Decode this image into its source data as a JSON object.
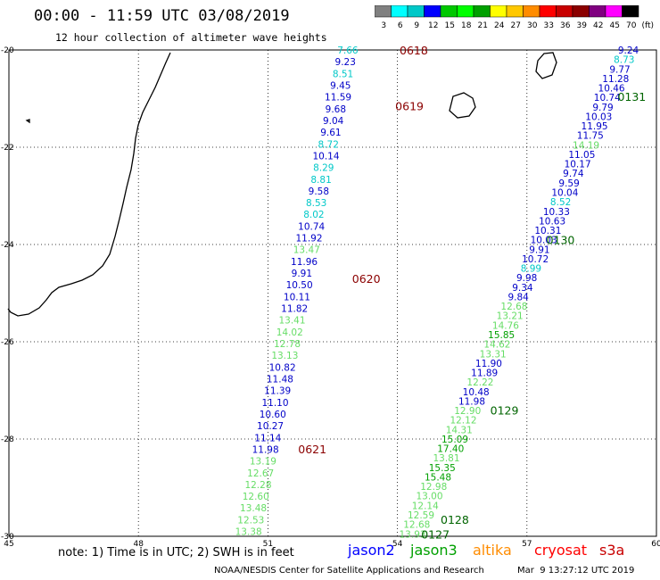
{
  "header": {
    "title": "00:00 - 11:59 UTC 03/08/2019",
    "subtitle": "12 hour collection of altimeter wave heights"
  },
  "colorbar": {
    "labels": [
      "3",
      "6",
      "9",
      "12",
      "15",
      "18",
      "21",
      "24",
      "27",
      "30",
      "33",
      "36",
      "39",
      "42",
      "45",
      "70",
      "(ft)"
    ],
    "colors": [
      "#808080",
      "#00ffff",
      "#00c8c8",
      "#0000ff",
      "#00c800",
      "#00ff00",
      "#00a000",
      "#ffff00",
      "#ffc800",
      "#ff8c00",
      "#ff0000",
      "#c80000",
      "#8b0000",
      "#800080",
      "#ff00ff",
      "#000000"
    ]
  },
  "axes": {
    "lon_ticks": [
      "45",
      "48",
      "51",
      "54",
      "57",
      "60"
    ],
    "lat_ticks": [
      "-20",
      "-22",
      "-24",
      "-26",
      "-28",
      "-30"
    ]
  },
  "passes": [
    {
      "text": "0618",
      "color": "#8b0000",
      "lon": 54.05,
      "lat": -20.0
    },
    {
      "text": "0619",
      "color": "#8b0000",
      "lon": 53.95,
      "lat": -21.15
    },
    {
      "text": "0620",
      "color": "#8b0000",
      "lon": 52.95,
      "lat": -24.7
    },
    {
      "text": "0621",
      "color": "#8b0000",
      "lon": 51.7,
      "lat": -28.2
    },
    {
      "text": "0131",
      "color": "#006400",
      "lon": 59.1,
      "lat": -20.95
    },
    {
      "text": "0130",
      "color": "#006400",
      "lon": 57.45,
      "lat": -23.9
    },
    {
      "text": "0129",
      "color": "#006400",
      "lon": 56.15,
      "lat": -27.4
    },
    {
      "text": "0128",
      "color": "#006400",
      "lon": 55.0,
      "lat": -29.65
    },
    {
      "text": "0127",
      "color": "#006400",
      "lon": 54.55,
      "lat": -29.95
    }
  ],
  "tracks": [
    {
      "name": "track-west",
      "lon_start": 52.85,
      "lon_end": 50.55,
      "lat_start": -20.0,
      "lat_end": -29.9,
      "values": [
        {
          "t": "7.66",
          "c": "#00c8c8"
        },
        {
          "t": "9.23",
          "c": "#0000c8"
        },
        {
          "t": "8.51",
          "c": "#00c8c8"
        },
        {
          "t": "9.45",
          "c": "#0000c8"
        },
        {
          "t": "11.59",
          "c": "#0000c8"
        },
        {
          "t": "9.68",
          "c": "#0000c8"
        },
        {
          "t": "9.04",
          "c": "#0000c8"
        },
        {
          "t": "9.61",
          "c": "#0000c8"
        },
        {
          "t": "8.72",
          "c": "#00c8c8"
        },
        {
          "t": "10.14",
          "c": "#0000c8"
        },
        {
          "t": "8.29",
          "c": "#00c8c8"
        },
        {
          "t": "8.81",
          "c": "#00c8c8"
        },
        {
          "t": "9.58",
          "c": "#0000c8"
        },
        {
          "t": "8.53",
          "c": "#00c8c8"
        },
        {
          "t": "8.02",
          "c": "#00c8c8"
        },
        {
          "t": "10.74",
          "c": "#0000c8"
        },
        {
          "t": "11.92",
          "c": "#0000c8"
        },
        {
          "t": "13.47",
          "c": "#66dd66"
        },
        {
          "t": "11.96",
          "c": "#0000c8"
        },
        {
          "t": "9.91",
          "c": "#0000c8"
        },
        {
          "t": "10.50",
          "c": "#0000c8"
        },
        {
          "t": "10.11",
          "c": "#0000c8"
        },
        {
          "t": "11.82",
          "c": "#0000c8"
        },
        {
          "t": "13.41",
          "c": "#66dd66"
        },
        {
          "t": "14.02",
          "c": "#66dd66"
        },
        {
          "t": "12.78",
          "c": "#66dd66"
        },
        {
          "t": "13.13",
          "c": "#66dd66"
        },
        {
          "t": "10.82",
          "c": "#0000c8"
        },
        {
          "t": "11.48",
          "c": "#0000c8"
        },
        {
          "t": "11.39",
          "c": "#0000c8"
        },
        {
          "t": "11.10",
          "c": "#0000c8"
        },
        {
          "t": "10.60",
          "c": "#0000c8"
        },
        {
          "t": "10.27",
          "c": "#0000c8"
        },
        {
          "t": "11.14",
          "c": "#0000c8"
        },
        {
          "t": "11.98",
          "c": "#0000c8"
        },
        {
          "t": "13.19",
          "c": "#66dd66"
        },
        {
          "t": "12.67",
          "c": "#66dd66"
        },
        {
          "t": "12.28",
          "c": "#66dd66"
        },
        {
          "t": "12.60",
          "c": "#66dd66"
        },
        {
          "t": "13.48",
          "c": "#66dd66"
        },
        {
          "t": "12.53",
          "c": "#66dd66"
        },
        {
          "t": "13.38",
          "c": "#66dd66"
        }
      ]
    },
    {
      "name": "track-east",
      "lon_start": 59.35,
      "lon_end": 54.35,
      "lat_start": -20.0,
      "lat_end": -29.95,
      "values": [
        {
          "t": "9.24",
          "c": "#0000c8"
        },
        {
          "t": "8.73",
          "c": "#00c8c8"
        },
        {
          "t": "9.77",
          "c": "#0000c8"
        },
        {
          "t": "11.28",
          "c": "#0000c8"
        },
        {
          "t": "10.46",
          "c": "#0000c8"
        },
        {
          "t": "10.74",
          "c": "#0000c8"
        },
        {
          "t": "9.79",
          "c": "#0000c8"
        },
        {
          "t": "10.03",
          "c": "#0000c8"
        },
        {
          "t": "11.95",
          "c": "#0000c8"
        },
        {
          "t": "11.75",
          "c": "#0000c8"
        },
        {
          "t": "14.19",
          "c": "#66dd66"
        },
        {
          "t": "11.05",
          "c": "#0000c8"
        },
        {
          "t": "10.17",
          "c": "#0000c8"
        },
        {
          "t": "9.74",
          "c": "#0000c8"
        },
        {
          "t": "9.59",
          "c": "#0000c8"
        },
        {
          "t": "10.04",
          "c": "#0000c8"
        },
        {
          "t": "8.52",
          "c": "#00c8c8"
        },
        {
          "t": "10.33",
          "c": "#0000c8"
        },
        {
          "t": "10.63",
          "c": "#0000c8"
        },
        {
          "t": "10.31",
          "c": "#0000c8"
        },
        {
          "t": "10.03",
          "c": "#0000c8"
        },
        {
          "t": "9.91",
          "c": "#0000c8"
        },
        {
          "t": "10.72",
          "c": "#0000c8"
        },
        {
          "t": "8.99",
          "c": "#00c8c8"
        },
        {
          "t": "9.98",
          "c": "#0000c8"
        },
        {
          "t": "9.34",
          "c": "#0000c8"
        },
        {
          "t": "9.84",
          "c": "#0000c8"
        },
        {
          "t": "12.68",
          "c": "#66dd66"
        },
        {
          "t": "13.21",
          "c": "#66dd66"
        },
        {
          "t": "14.76",
          "c": "#66dd66"
        },
        {
          "t": "15.85",
          "c": "#00a000"
        },
        {
          "t": "14.62",
          "c": "#66dd66"
        },
        {
          "t": "13.31",
          "c": "#66dd66"
        },
        {
          "t": "11.90",
          "c": "#0000c8"
        },
        {
          "t": "11.89",
          "c": "#0000c8"
        },
        {
          "t": "12.22",
          "c": "#66dd66"
        },
        {
          "t": "10.48",
          "c": "#0000c8"
        },
        {
          "t": "11.98",
          "c": "#0000c8"
        },
        {
          "t": "12.90",
          "c": "#66dd66"
        },
        {
          "t": "12.12",
          "c": "#66dd66"
        },
        {
          "t": "14.31",
          "c": "#66dd66"
        },
        {
          "t": "15.09",
          "c": "#00a000"
        },
        {
          "t": "17.40",
          "c": "#00a000"
        },
        {
          "t": "13.81",
          "c": "#66dd66"
        },
        {
          "t": "15.35",
          "c": "#00a000"
        },
        {
          "t": "15.48",
          "c": "#00a000"
        },
        {
          "t": "12.98",
          "c": "#66dd66"
        },
        {
          "t": "13.00",
          "c": "#66dd66"
        },
        {
          "t": "12.14",
          "c": "#66dd66"
        },
        {
          "t": "12.59",
          "c": "#66dd66"
        },
        {
          "t": "12.68",
          "c": "#66dd66"
        },
        {
          "t": "13.93",
          "c": "#66dd66"
        }
      ]
    }
  ],
  "footer": {
    "note": "note: 1) Time is in UTC; 2) SWH is in feet",
    "legend": [
      {
        "text": "jason2",
        "color": "#0000ff"
      },
      {
        "text": "jason3",
        "color": "#00a000"
      },
      {
        "text": "altika",
        "color": "#ff8c00"
      },
      {
        "text": "cryosat",
        "color": "#ff0000"
      },
      {
        "text": "s3a",
        "color": "#c80000"
      }
    ],
    "credit": "NOAA/NESDIS Center for Satellite Applications and Research",
    "timestamp": "Mar  9 13:27:12 UTC 2019"
  }
}
